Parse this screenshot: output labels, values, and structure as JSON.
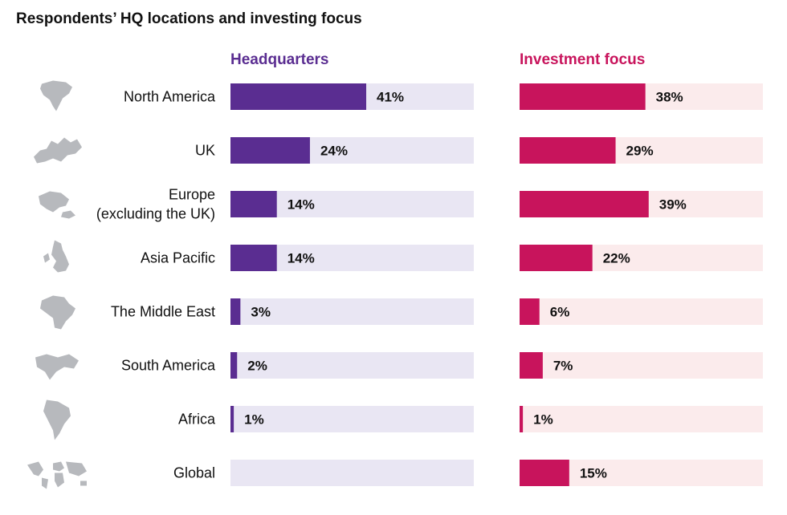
{
  "chart_data": {
    "type": "bar",
    "orientation": "horizontal",
    "title": "Respondents’ HQ locations and investing focus",
    "categories": [
      [
        "North America"
      ],
      [
        "UK"
      ],
      [
        "Europe",
        "(excluding the UK)"
      ],
      [
        "Asia Pacific"
      ],
      [
        "The Middle East"
      ],
      [
        "South America"
      ],
      [
        "Africa"
      ],
      [
        "Global"
      ]
    ],
    "icons": [
      "north-america-map-icon",
      "europe-map-icon",
      "asia-pacific-map-icon",
      "uk-map-icon",
      "africa-map-icon",
      "middle-east-map-icon",
      "south-america-map-icon",
      "world-map-icon"
    ],
    "xlim": [
      0,
      100
    ],
    "grid": false,
    "series": [
      {
        "name": "Headquarters",
        "values": [
          41,
          24,
          14,
          14,
          3,
          2,
          1,
          null
        ],
        "labels": [
          "41%",
          "24%",
          "14%",
          "14%",
          "3%",
          "2%",
          "1%",
          ""
        ],
        "color": "#5a2d91",
        "track_color": "#e9e6f3"
      },
      {
        "name": "Investment focus",
        "values": [
          38,
          29,
          39,
          22,
          6,
          7,
          1,
          15
        ],
        "labels": [
          "38%",
          "29%",
          "39%",
          "22%",
          "6%",
          "7%",
          "1%",
          "15%"
        ],
        "color": "#c8145c",
        "track_color": "#fbebec"
      }
    ]
  }
}
